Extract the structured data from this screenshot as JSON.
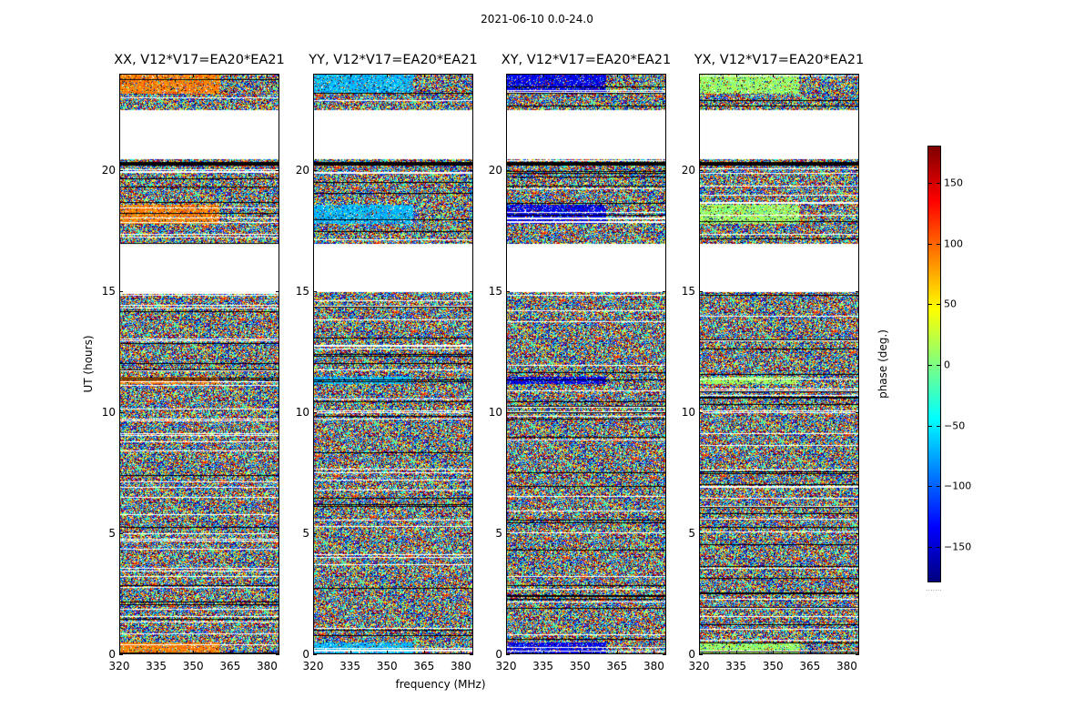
{
  "page_title": "2021-06-10 0.0-24.0",
  "colorbar": {
    "label": "phase (deg.)",
    "ticks": [
      {
        "value": 150,
        "label": "150"
      },
      {
        "value": 100,
        "label": "100"
      },
      {
        "value": 50,
        "label": "50"
      },
      {
        "value": 0,
        "label": "0"
      },
      {
        "value": -50,
        "label": "−50"
      },
      {
        "value": -100,
        "label": "−100"
      },
      {
        "value": -150,
        "label": "−150"
      }
    ],
    "range": [
      -180,
      180
    ],
    "colormap": "jet"
  },
  "chart_data": {
    "type": "heatmap",
    "xlabel": "frequency (MHz)",
    "ylabel": "UT (hours)",
    "xlim": [
      320,
      385
    ],
    "ylim": [
      0,
      24
    ],
    "x_ticks": [
      {
        "value": 320,
        "label": "320"
      },
      {
        "value": 335,
        "label": "335"
      },
      {
        "value": 350,
        "label": "350"
      },
      {
        "value": 365,
        "label": "365"
      },
      {
        "value": 380,
        "label": "380"
      }
    ],
    "y_ticks": [
      {
        "value": 0,
        "label": "0"
      },
      {
        "value": 5,
        "label": "5"
      },
      {
        "value": 10,
        "label": "10"
      },
      {
        "value": 15,
        "label": "15"
      },
      {
        "value": 20,
        "label": "20"
      }
    ],
    "colorbar_range": [
      -180,
      180
    ],
    "blank_ut_ranges": [
      [
        20.5,
        22.5
      ],
      [
        15.0,
        17.0
      ]
    ],
    "flagged_ut_lines": [
      20.3
    ],
    "panels": [
      {
        "title": "XX, V12*V17=EA20*EA21",
        "coherent_phase_deg": 90
      },
      {
        "title": "YY, V12*V17=EA20*EA21",
        "coherent_phase_deg": -70
      },
      {
        "title": "XY, V12*V17=EA20*EA21",
        "coherent_phase_deg": -140
      },
      {
        "title": "YX, V12*V17=EA20*EA21",
        "coherent_phase_deg": 10
      }
    ]
  }
}
